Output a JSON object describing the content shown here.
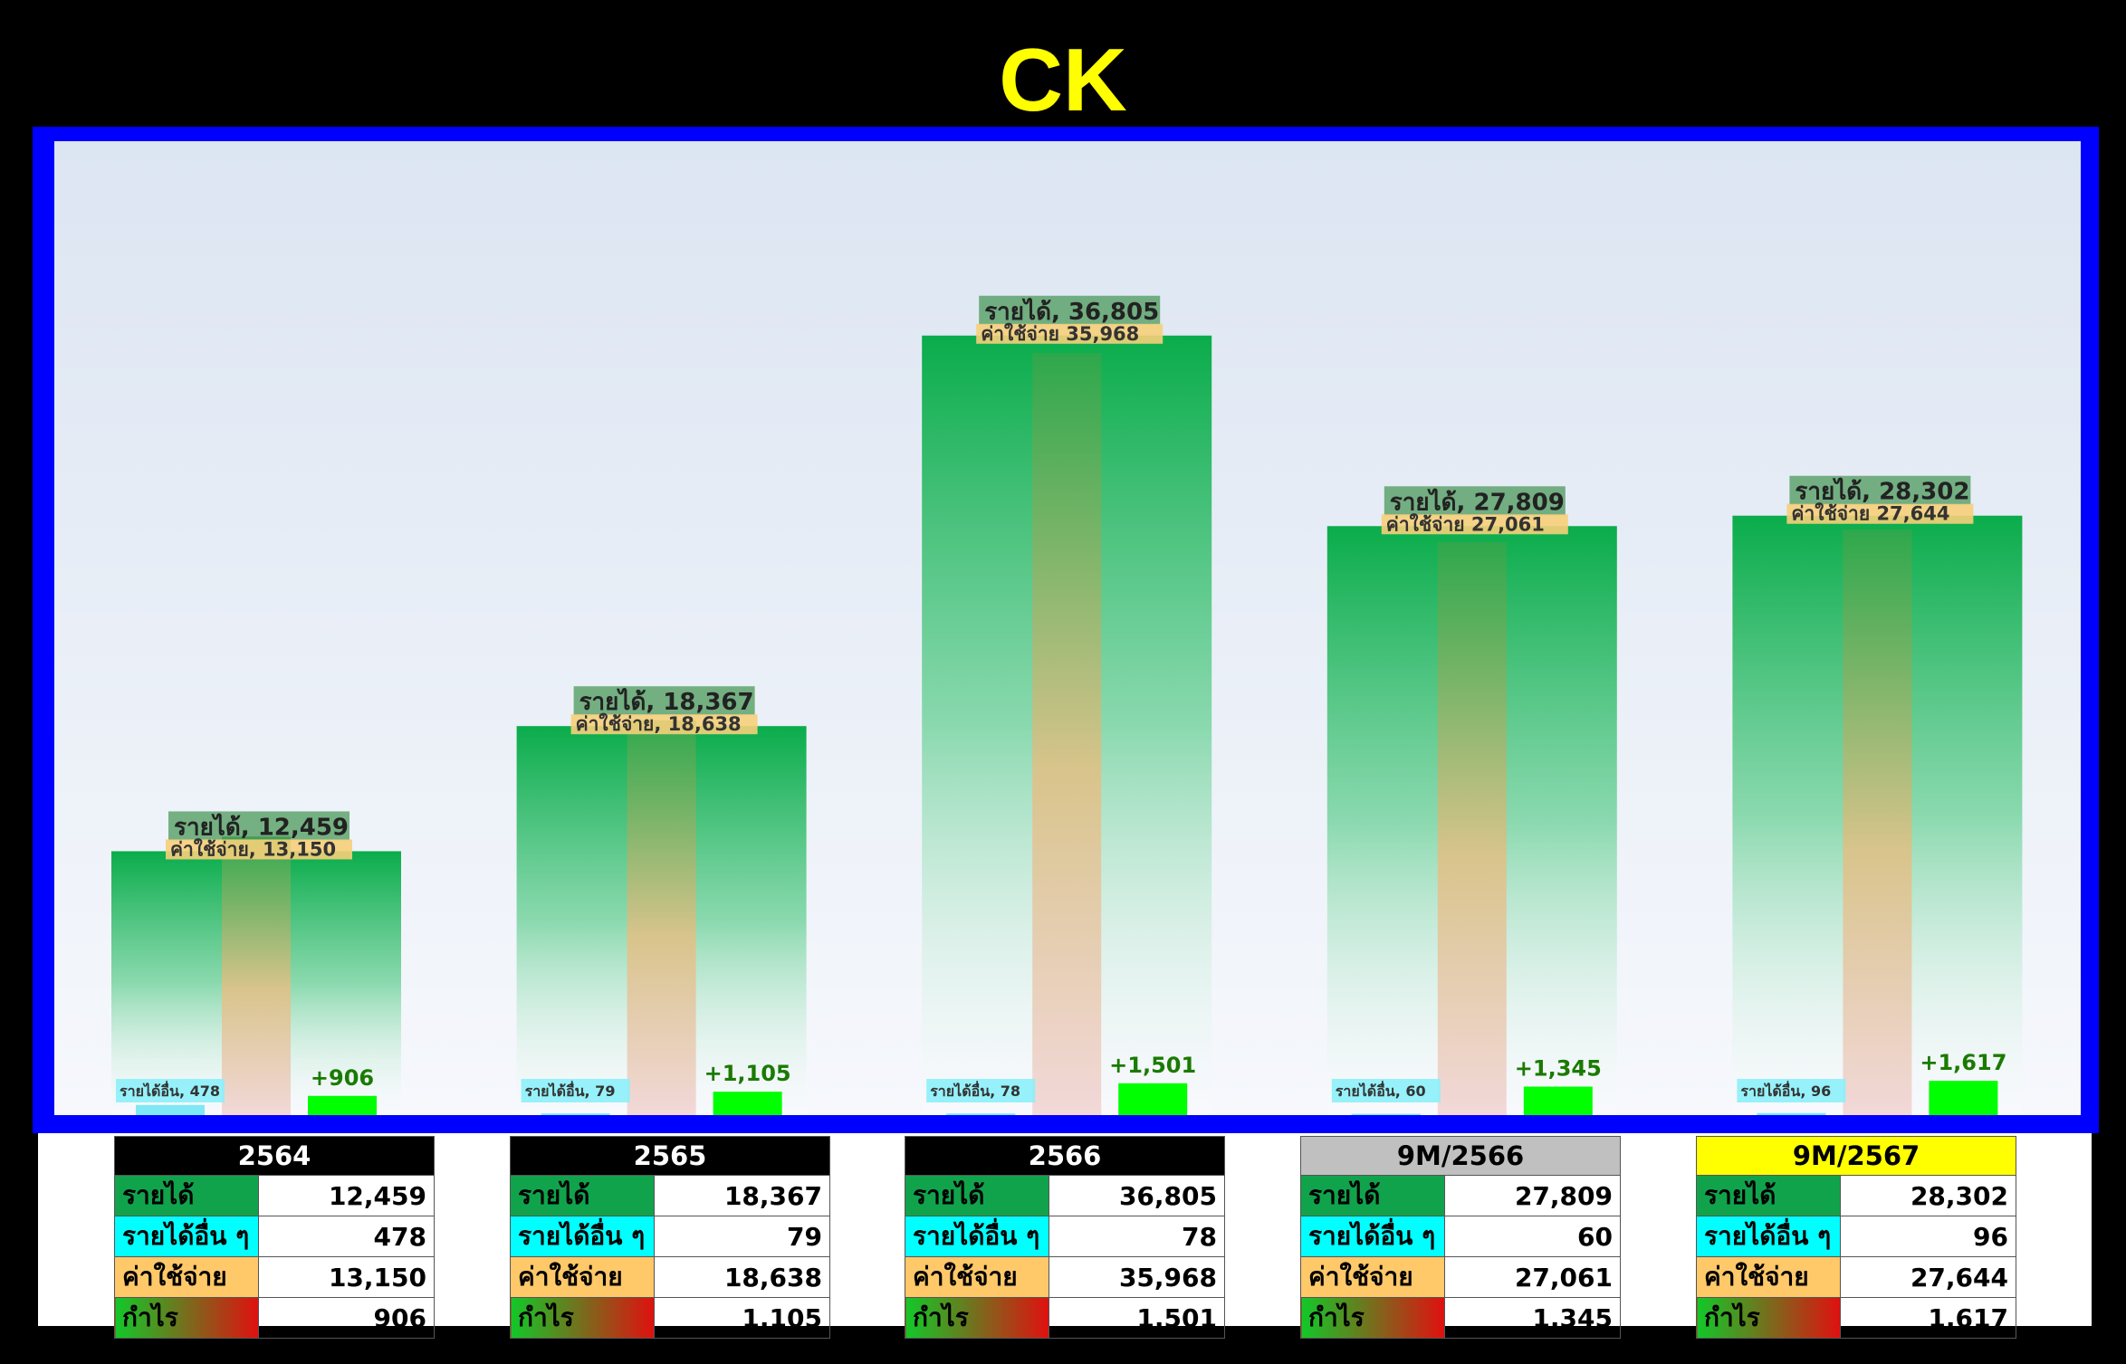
{
  "title": "CK",
  "colors": {
    "revenue": "#0aac4b",
    "expense": "#f0b870",
    "other": "#7fe8f5",
    "profit": "#00ff00",
    "profit_text": "#1a7a00",
    "frame": "#0000ff",
    "title": "#ffff00"
  },
  "chart_data": {
    "type": "bar",
    "categories": [
      "2564",
      "2565",
      "2566",
      "9M/2566",
      "9M/2567"
    ],
    "ylim": [
      0,
      40000
    ],
    "series": [
      {
        "key": "revenue",
        "name": "รายได้",
        "values": [
          12459,
          18367,
          36805,
          27809,
          28302
        ]
      },
      {
        "key": "expense",
        "name": "ค่าใช้จ่าย",
        "values": [
          13150,
          18638,
          35968,
          27061,
          27644
        ]
      },
      {
        "key": "other",
        "name": "รายได้อื่น",
        "values": [
          478,
          79,
          78,
          60,
          96
        ]
      },
      {
        "key": "profit",
        "name": "กำไร",
        "values": [
          906,
          1105,
          1501,
          1345,
          1617
        ]
      }
    ],
    "labels": {
      "revenue": [
        "รายได้, 12,459",
        "รายได้, 18,367",
        "รายได้, 36,805",
        "รายได้, 27,809",
        "รายได้, 28,302"
      ],
      "expense": [
        "ค่าใช้จ่าย, 13,150",
        "ค่าใช้จ่าย, 18,638",
        "ค่าใช้จ่าย 35,968",
        "ค่าใช้จ่าย 27,061",
        "ค่าใช้จ่าย 27,644"
      ],
      "other": [
        "รายได้อื่น, 478",
        "รายได้อื่น, 79",
        "รายได้อื่น, 78",
        "รายได้อื่น, 60",
        "รายได้อื่น, 96"
      ],
      "profit": [
        "+906",
        "+1,105",
        "+1,501",
        "+1,345",
        "+1,617"
      ]
    }
  },
  "tables": [
    {
      "header": "2564",
      "header_bg": "#000000",
      "header_fg": "#ffffff",
      "rows": [
        {
          "label": "รายได้",
          "value": "12,459"
        },
        {
          "label": "รายได้อื่น ๆ",
          "value": "478"
        },
        {
          "label": "ค่าใช้จ่าย",
          "value": "13,150"
        },
        {
          "label": "กำไร",
          "value": "906"
        }
      ]
    },
    {
      "header": "2565",
      "header_bg": "#000000",
      "header_fg": "#ffffff",
      "rows": [
        {
          "label": "รายได้",
          "value": "18,367"
        },
        {
          "label": "รายได้อื่น ๆ",
          "value": "79"
        },
        {
          "label": "ค่าใช้จ่าย",
          "value": "18,638"
        },
        {
          "label": "กำไร",
          "value": "1,105"
        }
      ]
    },
    {
      "header": "2566",
      "header_bg": "#000000",
      "header_fg": "#ffffff",
      "rows": [
        {
          "label": "รายได้",
          "value": "36,805"
        },
        {
          "label": "รายได้อื่น ๆ",
          "value": "78"
        },
        {
          "label": "ค่าใช้จ่าย",
          "value": "35,968"
        },
        {
          "label": "กำไร",
          "value": "1,501"
        }
      ]
    },
    {
      "header": "9M/2566",
      "header_bg": "#c0c0c0",
      "header_fg": "#000000",
      "rows": [
        {
          "label": "รายได้",
          "value": "27,809"
        },
        {
          "label": "รายได้อื่น ๆ",
          "value": "60"
        },
        {
          "label": "ค่าใช้จ่าย",
          "value": "27,061"
        },
        {
          "label": "กำไร",
          "value": "1,345"
        }
      ]
    },
    {
      "header": "9M/2567",
      "header_bg": "#ffff00",
      "header_fg": "#000000",
      "rows": [
        {
          "label": "รายได้",
          "value": "28,302"
        },
        {
          "label": "รายได้อื่น ๆ",
          "value": "96"
        },
        {
          "label": "ค่าใช้จ่าย",
          "value": "27,644"
        },
        {
          "label": "กำไร",
          "value": "1,617"
        }
      ]
    }
  ]
}
